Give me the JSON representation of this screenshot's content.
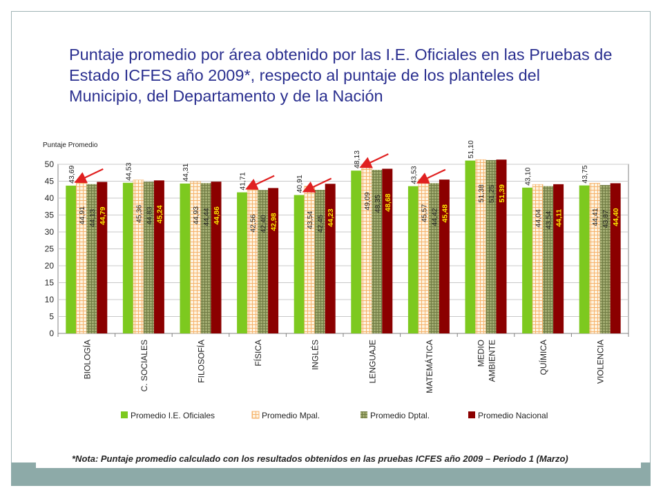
{
  "title": "Puntaje promedio por área obtenido por las I.E. Oficiales en las Pruebas de Estado ICFES año 2009*, respecto al puntaje de los planteles del Municipio, del Departamento y de la Nación",
  "note": "*Nota: Puntaje promedio calculado con los resultados obtenidos en las pruebas ICFES año 2009 – Periodo 1 (Marzo)",
  "colors": {
    "title": "#2a2f8f",
    "footer_band": "#8daaa8",
    "arrow": "#e02020"
  },
  "chart_data": {
    "type": "bar",
    "ylabel": "Puntaje Promedio",
    "ylim": [
      0,
      50
    ],
    "yticks": [
      0,
      5,
      10,
      15,
      20,
      25,
      30,
      35,
      40,
      45,
      50
    ],
    "grid": true,
    "legend_position": "bottom",
    "categories": [
      "BIOLOGÍA",
      "C. SOCIALES",
      "FILOSOFÍA",
      "FÍSICA",
      "INGLÉS",
      "LENGUAJE",
      "MATEMÁTICA",
      "MEDIO AMBIENTE",
      "QUÍMICA",
      "VIOLENCIA"
    ],
    "series": [
      {
        "name": "Promedio I.E. Oficiales",
        "color": "#7dc91f",
        "values": [
          43.69,
          44.53,
          44.31,
          41.71,
          40.91,
          48.13,
          43.53,
          51.1,
          43.1,
          43.75
        ],
        "labels": [
          "43,69",
          "44,53",
          "44,31",
          "41,71",
          "40,91",
          "48,13",
          "43,53",
          "51,10",
          "43,10",
          "43,75"
        ]
      },
      {
        "name": "Promedio Mpal.",
        "color": "#f6b26b",
        "values": [
          44.91,
          45.36,
          44.93,
          42.56,
          43.54,
          49.09,
          45.57,
          51.38,
          44.04,
          44.41
        ],
        "labels": [
          "44,91",
          "45,36",
          "44,93",
          "42,56",
          "43,54",
          "49,09",
          "45,57",
          "51,38",
          "44,04",
          "44,41"
        ]
      },
      {
        "name": "Promedio Dptal.",
        "color": "#8d9a5b",
        "values": [
          44.13,
          44.83,
          44.44,
          42.4,
          42.45,
          48.35,
          44.42,
          51.25,
          43.54,
          43.87
        ],
        "labels": [
          "44,13",
          "44,83",
          "44,44",
          "42,40",
          "42,45",
          "48,35",
          "44,42",
          "51,25",
          "43,54",
          "43,87"
        ]
      },
      {
        "name": "Promedio Nacional",
        "color": "#8b0000",
        "values": [
          44.79,
          45.24,
          44.86,
          42.98,
          44.23,
          48.68,
          45.48,
          51.39,
          44.11,
          44.4
        ],
        "labels": [
          "44,79",
          "45,24",
          "44,86",
          "42,98",
          "44,23",
          "48,68",
          "45,48",
          "51,39",
          "44,11",
          "44,40"
        ]
      }
    ],
    "annotations": "red arrows pointing at Promedio I.E. Oficiales bars of BIOLOGÍA, FÍSICA, INGLÉS, LENGUAJE, MATEMÁTICA"
  }
}
